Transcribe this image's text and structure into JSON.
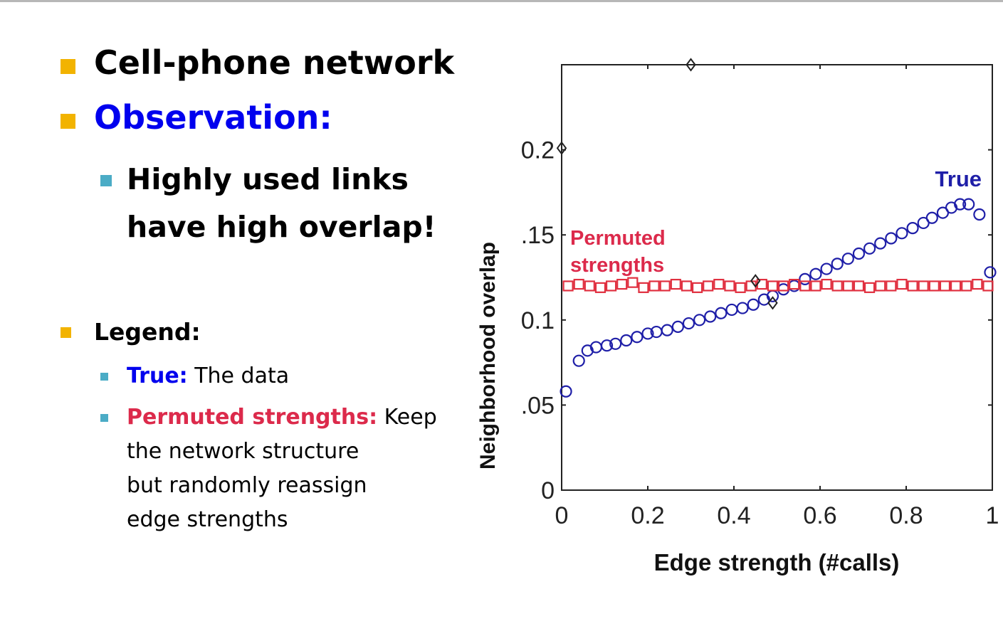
{
  "slide": {
    "bullets": {
      "cell_phone": "Cell-phone network",
      "observation": "Observation:",
      "sub_line1": "Highly used links",
      "sub_line2": "have high overlap!",
      "legend": "Legend:",
      "true_label": "True:",
      "true_desc": " The data",
      "perm_label": "Permuted strengths:",
      "perm_desc1": " Keep",
      "perm_desc2": "the network structure",
      "perm_desc3": "but randomly reassign",
      "perm_desc4": "edge strengths"
    }
  },
  "colors": {
    "bullet": "#f2b300",
    "sub_bullet": "#4bacc6",
    "true": "#1f1fa8",
    "permuted": "#e03040",
    "observation_text": "#0000ee",
    "permuted_text": "#dc2a4b"
  },
  "chart_data": {
    "type": "scatter",
    "title": "",
    "xlabel": "Edge strength (#calls)",
    "ylabel": "Neighborhood  overlap",
    "xlim": [
      0,
      1
    ],
    "ylim": [
      0,
      0.25
    ],
    "x_ticks": [
      0,
      0.2,
      0.4,
      0.6,
      0.8,
      1
    ],
    "x_tick_labels": [
      "0",
      "0.2",
      "0.4",
      "0.6",
      "0.8",
      "1"
    ],
    "y_ticks": [
      0,
      0.05,
      0.1,
      0.15,
      0.2
    ],
    "y_tick_labels": [
      "0",
      ".05",
      "0.1",
      ".15",
      "0.2"
    ],
    "grid": false,
    "annotations": [
      {
        "text": "True",
        "series": "True"
      },
      {
        "text": "Permuted",
        "series": "Permuted strengths"
      },
      {
        "text": "strengths",
        "series": "Permuted strengths"
      }
    ],
    "series": [
      {
        "name": "True",
        "marker": "circle",
        "color": "#1f1fa8",
        "x": [
          0.01,
          0.04,
          0.06,
          0.08,
          0.105,
          0.125,
          0.15,
          0.175,
          0.2,
          0.22,
          0.245,
          0.27,
          0.295,
          0.32,
          0.345,
          0.37,
          0.395,
          0.42,
          0.445,
          0.47,
          0.49,
          0.515,
          0.54,
          0.565,
          0.59,
          0.615,
          0.64,
          0.665,
          0.69,
          0.715,
          0.74,
          0.765,
          0.79,
          0.815,
          0.84,
          0.86,
          0.885,
          0.905,
          0.925,
          0.945,
          0.97,
          0.995
        ],
        "y": [
          0.058,
          0.076,
          0.082,
          0.084,
          0.085,
          0.086,
          0.088,
          0.09,
          0.092,
          0.093,
          0.094,
          0.096,
          0.098,
          0.1,
          0.102,
          0.104,
          0.106,
          0.107,
          0.109,
          0.112,
          0.114,
          0.118,
          0.12,
          0.124,
          0.127,
          0.13,
          0.133,
          0.136,
          0.139,
          0.142,
          0.145,
          0.148,
          0.151,
          0.154,
          0.157,
          0.16,
          0.163,
          0.166,
          0.168,
          0.168,
          0.162,
          0.128
        ]
      },
      {
        "name": "Permuted strengths",
        "marker": "square",
        "color": "#e03040",
        "x": [
          0.015,
          0.04,
          0.065,
          0.09,
          0.115,
          0.14,
          0.165,
          0.19,
          0.215,
          0.24,
          0.265,
          0.29,
          0.315,
          0.34,
          0.365,
          0.39,
          0.415,
          0.44,
          0.465,
          0.49,
          0.515,
          0.54,
          0.565,
          0.59,
          0.615,
          0.64,
          0.665,
          0.69,
          0.715,
          0.74,
          0.765,
          0.79,
          0.815,
          0.84,
          0.865,
          0.89,
          0.915,
          0.94,
          0.965,
          0.99
        ],
        "y": [
          0.12,
          0.121,
          0.12,
          0.119,
          0.12,
          0.121,
          0.122,
          0.119,
          0.12,
          0.12,
          0.121,
          0.12,
          0.119,
          0.12,
          0.121,
          0.12,
          0.119,
          0.12,
          0.121,
          0.12,
          0.12,
          0.121,
          0.12,
          0.12,
          0.121,
          0.12,
          0.12,
          0.12,
          0.119,
          0.12,
          0.12,
          0.121,
          0.12,
          0.12,
          0.12,
          0.12,
          0.12,
          0.12,
          0.121,
          0.12
        ]
      },
      {
        "name": "",
        "marker": "diamond",
        "color": "#222222",
        "x": [
          0.0,
          0.3,
          0.45,
          0.49
        ],
        "y": [
          0.201,
          0.25,
          0.123,
          0.11
        ]
      }
    ]
  }
}
